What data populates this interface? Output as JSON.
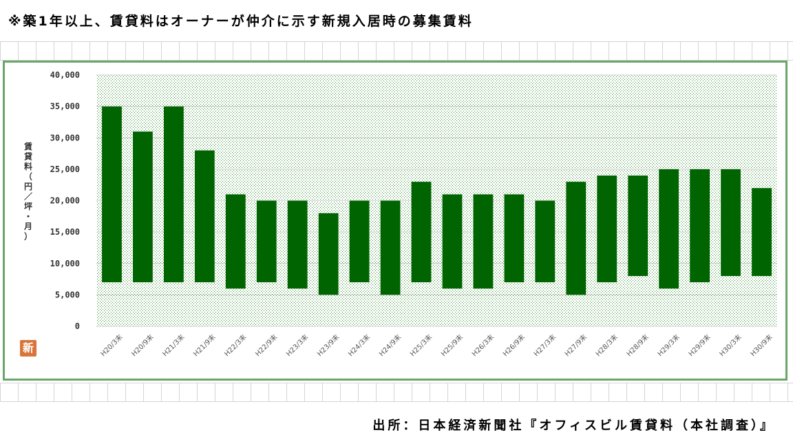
{
  "note": "※築1年以上、賃貸料はオーナーが仲介に示す新規入居時の募集賃料",
  "source": "出所：日本経済新聞社『オフィスビル賃貸料（本社調査）』",
  "logo_text": "新",
  "colors": {
    "bar": "#006400",
    "frame": "#6aa56a",
    "plot_dots": "#2e8b2e",
    "logo": "#d9743a"
  },
  "chart_data": {
    "type": "bar",
    "ylabel": "賃貸料（円／坪・月）",
    "ylim": [
      0,
      40000
    ],
    "yticks": [
      "0",
      "5,000",
      "10,000",
      "15,000",
      "20,000",
      "25,000",
      "30,000",
      "35,000",
      "40,000"
    ],
    "categories": [
      "H20/3末",
      "H20/9末",
      "H21/3末",
      "H21/9末",
      "H22/3末",
      "H22/9末",
      "H23/3末",
      "H23/9末",
      "H24/3末",
      "H24/9末",
      "H25/3末",
      "H25/9末",
      "H26/3末",
      "H26/9末",
      "H27/3末",
      "H27/9末",
      "H28/3末",
      "H28/9末",
      "H29/3末",
      "H29/9末",
      "H30/3末",
      "H30/9末"
    ],
    "series": [
      {
        "low": [
          7000,
          7000,
          7000,
          7000,
          6000,
          7000,
          6000,
          5000,
          7000,
          5000,
          7000,
          6000,
          6000,
          7000,
          7000,
          5000,
          7000,
          8000,
          6000,
          7000,
          8000,
          8000
        ],
        "high": [
          35000,
          31000,
          35000,
          28000,
          21000,
          20000,
          20000,
          18000,
          20000,
          20000,
          23000,
          21000,
          21000,
          21000,
          20000,
          23000,
          24000,
          24000,
          25000,
          25000,
          25000,
          22000
        ]
      }
    ],
    "grid": true,
    "legend": "none"
  }
}
